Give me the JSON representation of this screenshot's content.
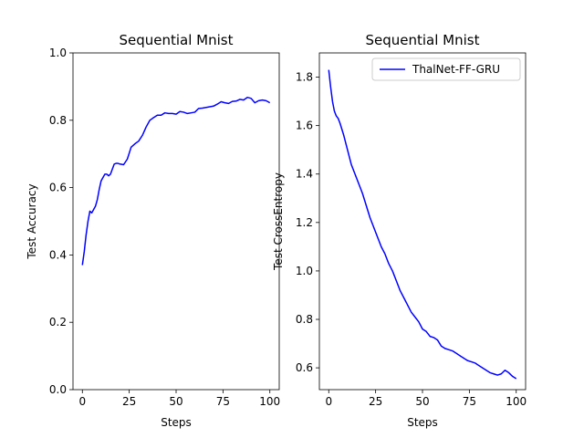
{
  "colors": {
    "line": "#0000ff",
    "axes": "#000000",
    "legend_border": "#cccccc",
    "background": "#ffffff"
  },
  "chart_data": [
    {
      "type": "line",
      "title": "Sequential Mnist",
      "xlabel": "Steps",
      "ylabel": "Test Accuracy",
      "xlim": [
        -5,
        105
      ],
      "ylim": [
        0.0,
        1.0
      ],
      "xticks": [
        0,
        25,
        50,
        75,
        100
      ],
      "xtick_labels": [
        "0",
        "25",
        "50",
        "75",
        "100"
      ],
      "yticks": [
        0.0,
        0.2,
        0.4,
        0.6,
        0.8,
        1.0
      ],
      "ytick_labels": [
        "0.0",
        "0.2",
        "0.4",
        "0.6",
        "0.8",
        "1.0"
      ],
      "grid": false,
      "legend": null,
      "series": [
        {
          "color": "#0000ff",
          "x": [
            0,
            1,
            2,
            3,
            4,
            5,
            6,
            7,
            8,
            9,
            10,
            11,
            12,
            13,
            14,
            15,
            16,
            17,
            18,
            19,
            20,
            22,
            24,
            26,
            28,
            30,
            32,
            34,
            36,
            38,
            40,
            42,
            44,
            46,
            48,
            50,
            52,
            54,
            56,
            58,
            60,
            62,
            64,
            66,
            68,
            70,
            72,
            74,
            76,
            78,
            80,
            82,
            84,
            86,
            88,
            90,
            92,
            94,
            96,
            98,
            100
          ],
          "y": [
            0.37,
            0.41,
            0.46,
            0.5,
            0.53,
            0.525,
            0.535,
            0.545,
            0.565,
            0.595,
            0.62,
            0.63,
            0.64,
            0.64,
            0.635,
            0.64,
            0.655,
            0.67,
            0.672,
            0.672,
            0.67,
            0.668,
            0.685,
            0.72,
            0.73,
            0.738,
            0.755,
            0.78,
            0.8,
            0.808,
            0.815,
            0.815,
            0.822,
            0.82,
            0.82,
            0.818,
            0.826,
            0.824,
            0.82,
            0.822,
            0.824,
            0.835,
            0.836,
            0.838,
            0.84,
            0.842,
            0.848,
            0.855,
            0.852,
            0.85,
            0.856,
            0.857,
            0.862,
            0.86,
            0.868,
            0.865,
            0.852,
            0.858,
            0.86,
            0.858,
            0.852
          ]
        }
      ]
    },
    {
      "type": "line",
      "title": "Sequential Mnist",
      "xlabel": "Steps",
      "ylabel": "Test CrossEntropy",
      "xlim": [
        -5,
        105
      ],
      "ylim": [
        0.51,
        1.9
      ],
      "xticks": [
        0,
        25,
        50,
        75,
        100
      ],
      "xtick_labels": [
        "0",
        "25",
        "50",
        "75",
        "100"
      ],
      "yticks": [
        0.6,
        0.8,
        1.0,
        1.2,
        1.4,
        1.6,
        1.8
      ],
      "ytick_labels": [
        "0.6",
        "0.8",
        "1.0",
        "1.2",
        "1.4",
        "1.6",
        "1.8"
      ],
      "grid": false,
      "legend": "top-right",
      "series": [
        {
          "name": "ThalNet-FF-GRU",
          "color": "#0000ff",
          "x": [
            0,
            1,
            2,
            3,
            4,
            5,
            6,
            8,
            10,
            12,
            14,
            16,
            18,
            20,
            22,
            24,
            26,
            28,
            30,
            32,
            34,
            36,
            38,
            40,
            42,
            44,
            46,
            48,
            50,
            52,
            54,
            56,
            58,
            60,
            62,
            64,
            66,
            68,
            70,
            72,
            74,
            76,
            78,
            80,
            82,
            84,
            86,
            88,
            90,
            92,
            94,
            96,
            98,
            100
          ],
          "y": [
            1.83,
            1.76,
            1.7,
            1.66,
            1.64,
            1.63,
            1.61,
            1.56,
            1.5,
            1.44,
            1.4,
            1.36,
            1.32,
            1.27,
            1.22,
            1.18,
            1.14,
            1.1,
            1.07,
            1.03,
            1.0,
            0.96,
            0.92,
            0.89,
            0.86,
            0.83,
            0.81,
            0.79,
            0.76,
            0.75,
            0.73,
            0.725,
            0.715,
            0.69,
            0.68,
            0.675,
            0.67,
            0.66,
            0.65,
            0.64,
            0.63,
            0.625,
            0.62,
            0.61,
            0.6,
            0.59,
            0.58,
            0.575,
            0.57,
            0.575,
            0.59,
            0.58,
            0.565,
            0.555
          ]
        }
      ]
    }
  ]
}
